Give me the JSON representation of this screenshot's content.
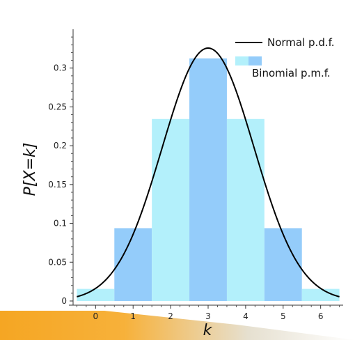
{
  "chart_data": {
    "type": "bar",
    "title": "",
    "xlabel": "k",
    "ylabel": "P[X=k]",
    "x": [
      0,
      1,
      2,
      3,
      4,
      5,
      6
    ],
    "xlim": [
      -0.6,
      6.6
    ],
    "ylim": [
      0,
      0.35
    ],
    "grid": false,
    "legend_position": "top-right",
    "yticks": [
      0,
      0.05,
      0.1,
      0.15,
      0.2,
      0.25,
      0.3
    ],
    "ytick_labels": [
      "0",
      "0.05",
      "0.1",
      "0.15",
      "0.2",
      "0.25",
      "0.3"
    ],
    "xticks": [
      0,
      1,
      2,
      3,
      4,
      5,
      6
    ],
    "xtick_labels": [
      "0",
      "1",
      "2",
      "3",
      "4",
      "5",
      "6"
    ],
    "series": [
      {
        "name": "Binomial p.m.f.",
        "type": "bar",
        "x": [
          0,
          1,
          2,
          3,
          4,
          5,
          6
        ],
        "values": [
          0.0156,
          0.0938,
          0.2344,
          0.3125,
          0.2344,
          0.0938,
          0.0156
        ],
        "colors": [
          "#b3f0fb",
          "#94ccfa",
          "#b3f0fb",
          "#94ccfa",
          "#b3f0fb",
          "#94ccfa",
          "#b3f0fb"
        ]
      },
      {
        "name": "Normal p.d.f.",
        "type": "line",
        "mean": 3,
        "sd": 1.2247,
        "color": "#000000"
      }
    ],
    "legend": {
      "normal_label": "Normal p.d.f.",
      "binomial_label": "Binomial p.m.f."
    }
  }
}
